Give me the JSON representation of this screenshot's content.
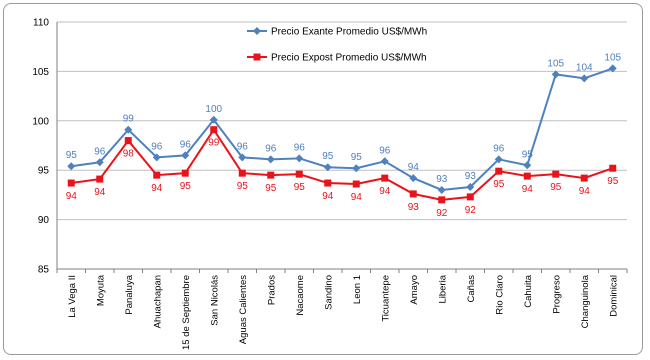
{
  "chart_data": {
    "type": "line",
    "title": "",
    "xlabel": "",
    "ylabel": "",
    "ylim": [
      85,
      110
    ],
    "yticks": [
      85,
      90,
      95,
      100,
      105,
      110
    ],
    "grid": "horizontal",
    "legend_position": "top-center",
    "categories": [
      "La Vega II",
      "Moyuta",
      "Panaluya",
      "Ahuachapan",
      "15 de Septiembre",
      "San Nicolás",
      "Aguas Calientes",
      "Prados",
      "Nacaome",
      "Sandino",
      "Leon 1",
      "Ticuantepe",
      "Amayo",
      "Liberia",
      "Cañas",
      "Rio Claro",
      "Cahuita",
      "Progreso",
      "Changuinola",
      "Dominical"
    ],
    "series": [
      {
        "name": "Precio Exante Promedio US$/MWh",
        "color": "#4F81BD",
        "marker": "diamond",
        "values": [
          95.4,
          95.8,
          99.1,
          96.3,
          96.5,
          100.1,
          96.3,
          96.1,
          96.2,
          95.3,
          95.2,
          95.9,
          94.2,
          93.0,
          93.3,
          96.1,
          95.5,
          104.7,
          104.3,
          105.3
        ],
        "labels": [
          "95",
          "96",
          "99",
          "96",
          "96",
          "100",
          "96",
          "96",
          "96",
          "95",
          "95",
          "96",
          "94",
          "93",
          "93",
          "96",
          "95",
          "105",
          "104",
          "105"
        ]
      },
      {
        "name": "Precio Expost Promedio US$/MWh",
        "color": "#E8131B",
        "marker": "square",
        "values": [
          93.7,
          94.1,
          98.0,
          94.5,
          94.7,
          99.1,
          94.7,
          94.5,
          94.6,
          93.7,
          93.6,
          94.2,
          92.6,
          92.0,
          92.3,
          94.9,
          94.4,
          94.6,
          94.2,
          95.2
        ],
        "labels": [
          "94",
          "94",
          "98",
          "94",
          "95",
          "99",
          "95",
          "95",
          "95",
          "94",
          "94",
          "94",
          "93",
          "92",
          "92",
          "95",
          "94",
          "95",
          "94",
          "95"
        ]
      }
    ]
  }
}
